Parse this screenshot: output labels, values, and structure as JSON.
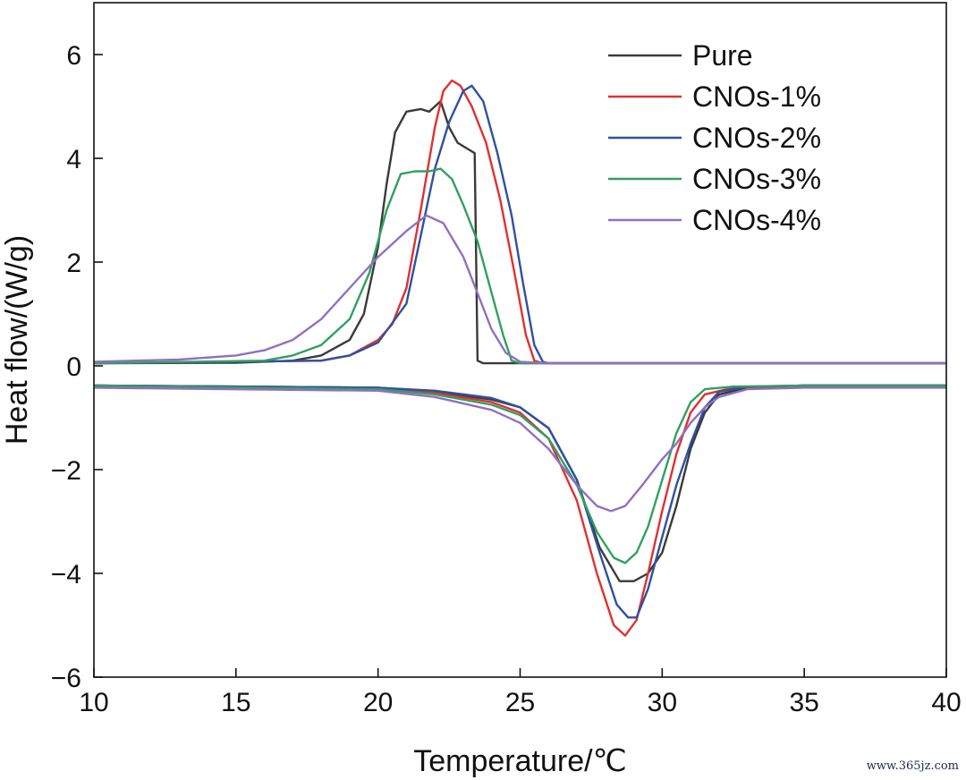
{
  "chart_data": {
    "type": "line",
    "title": "",
    "xlabel": "Temperature/℃",
    "ylabel": "Heat flow/(W/g)",
    "xlim": [
      10,
      40
    ],
    "ylim": [
      -6,
      7
    ],
    "xticks": [
      10,
      15,
      20,
      25,
      30,
      35,
      40
    ],
    "yticks": [
      -6,
      -4,
      -2,
      0,
      2,
      4,
      6
    ],
    "ytick_labels": [
      "−6",
      "−4",
      "−2",
      "0",
      "2",
      "4",
      "6"
    ],
    "grid": false,
    "legend_position": "top-right",
    "series": [
      {
        "name": "Pure",
        "color": "#3a3a3a",
        "heating": [
          [
            10,
            0.05
          ],
          [
            15,
            0.06
          ],
          [
            17,
            0.1
          ],
          [
            18,
            0.2
          ],
          [
            19,
            0.5
          ],
          [
            19.5,
            1.0
          ],
          [
            20,
            2.3
          ],
          [
            20.3,
            3.5
          ],
          [
            20.6,
            4.5
          ],
          [
            21,
            4.9
          ],
          [
            21.5,
            4.95
          ],
          [
            21.8,
            4.9
          ],
          [
            22,
            5.0
          ],
          [
            22.2,
            5.1
          ],
          [
            22.5,
            4.6
          ],
          [
            22.8,
            4.3
          ],
          [
            23.1,
            4.2
          ],
          [
            23.4,
            4.1
          ],
          [
            23.5,
            0.1
          ],
          [
            23.7,
            0.05
          ],
          [
            30,
            0.05
          ],
          [
            40,
            0.05
          ]
        ],
        "cooling": [
          [
            10,
            -0.38
          ],
          [
            20,
            -0.42
          ],
          [
            22,
            -0.5
          ],
          [
            24,
            -0.65
          ],
          [
            25,
            -0.8
          ],
          [
            26,
            -1.2
          ],
          [
            27,
            -2.2
          ],
          [
            27.8,
            -3.5
          ],
          [
            28.5,
            -4.15
          ],
          [
            29,
            -4.15
          ],
          [
            29.5,
            -4.0
          ],
          [
            30,
            -3.6
          ],
          [
            30.5,
            -2.7
          ],
          [
            31,
            -1.6
          ],
          [
            31.5,
            -0.9
          ],
          [
            32,
            -0.55
          ],
          [
            33,
            -0.42
          ],
          [
            35,
            -0.38
          ],
          [
            40,
            -0.38
          ]
        ]
      },
      {
        "name": "CNOs-1%",
        "color": "#e03030",
        "heating": [
          [
            10,
            0.05
          ],
          [
            18,
            0.1
          ],
          [
            19,
            0.2
          ],
          [
            20,
            0.5
          ],
          [
            20.5,
            0.8
          ],
          [
            21,
            1.5
          ],
          [
            21.5,
            3.0
          ],
          [
            22,
            4.6
          ],
          [
            22.3,
            5.3
          ],
          [
            22.6,
            5.5
          ],
          [
            22.9,
            5.4
          ],
          [
            23.3,
            5.0
          ],
          [
            23.8,
            4.3
          ],
          [
            24.3,
            3.2
          ],
          [
            24.8,
            1.8
          ],
          [
            25.2,
            0.6
          ],
          [
            25.5,
            0.1
          ],
          [
            25.8,
            0.05
          ],
          [
            40,
            0.05
          ]
        ],
        "cooling": [
          [
            10,
            -0.38
          ],
          [
            20,
            -0.42
          ],
          [
            22,
            -0.52
          ],
          [
            24,
            -0.7
          ],
          [
            25,
            -0.9
          ],
          [
            26,
            -1.4
          ],
          [
            27,
            -2.6
          ],
          [
            27.7,
            -4.0
          ],
          [
            28.3,
            -5.0
          ],
          [
            28.7,
            -5.2
          ],
          [
            29.1,
            -4.9
          ],
          [
            29.5,
            -4.0
          ],
          [
            30,
            -2.8
          ],
          [
            30.5,
            -1.7
          ],
          [
            31,
            -0.9
          ],
          [
            31.5,
            -0.55
          ],
          [
            32.5,
            -0.42
          ],
          [
            35,
            -0.38
          ],
          [
            40,
            -0.38
          ]
        ]
      },
      {
        "name": "CNOs-2%",
        "color": "#3050a0",
        "heating": [
          [
            10,
            0.05
          ],
          [
            18,
            0.1
          ],
          [
            19,
            0.2
          ],
          [
            20,
            0.45
          ],
          [
            21,
            1.2
          ],
          [
            21.5,
            2.5
          ],
          [
            22,
            3.8
          ],
          [
            22.5,
            4.7
          ],
          [
            23,
            5.3
          ],
          [
            23.3,
            5.4
          ],
          [
            23.7,
            5.1
          ],
          [
            24.2,
            4.1
          ],
          [
            24.7,
            2.9
          ],
          [
            25.1,
            1.6
          ],
          [
            25.5,
            0.4
          ],
          [
            25.8,
            0.08
          ],
          [
            26,
            0.05
          ],
          [
            40,
            0.05
          ]
        ],
        "cooling": [
          [
            10,
            -0.38
          ],
          [
            20,
            -0.42
          ],
          [
            22,
            -0.48
          ],
          [
            24,
            -0.62
          ],
          [
            25,
            -0.8
          ],
          [
            26,
            -1.2
          ],
          [
            27,
            -2.2
          ],
          [
            27.8,
            -3.6
          ],
          [
            28.4,
            -4.6
          ],
          [
            28.8,
            -4.85
          ],
          [
            29.1,
            -4.85
          ],
          [
            29.5,
            -4.3
          ],
          [
            30,
            -3.3
          ],
          [
            30.5,
            -2.3
          ],
          [
            31,
            -1.5
          ],
          [
            31.5,
            -0.8
          ],
          [
            32,
            -0.5
          ],
          [
            33,
            -0.4
          ],
          [
            35,
            -0.38
          ],
          [
            40,
            -0.38
          ]
        ]
      },
      {
        "name": "CNOs-3%",
        "color": "#30a060",
        "heating": [
          [
            10,
            0.05
          ],
          [
            16,
            0.1
          ],
          [
            17,
            0.2
          ],
          [
            18,
            0.4
          ],
          [
            19,
            0.9
          ],
          [
            19.7,
            1.8
          ],
          [
            20.3,
            3.0
          ],
          [
            20.8,
            3.7
          ],
          [
            21.3,
            3.75
          ],
          [
            21.8,
            3.75
          ],
          [
            22.2,
            3.8
          ],
          [
            22.6,
            3.6
          ],
          [
            23,
            3.1
          ],
          [
            23.5,
            2.4
          ],
          [
            24,
            1.4
          ],
          [
            24.4,
            0.6
          ],
          [
            24.7,
            0.1
          ],
          [
            25,
            0.05
          ],
          [
            40,
            0.05
          ]
        ],
        "cooling": [
          [
            10,
            -0.38
          ],
          [
            20,
            -0.45
          ],
          [
            22,
            -0.55
          ],
          [
            24,
            -0.75
          ],
          [
            25,
            -0.95
          ],
          [
            26,
            -1.4
          ],
          [
            27,
            -2.3
          ],
          [
            27.7,
            -3.2
          ],
          [
            28.3,
            -3.7
          ],
          [
            28.7,
            -3.8
          ],
          [
            29.1,
            -3.6
          ],
          [
            29.5,
            -3.1
          ],
          [
            30,
            -2.2
          ],
          [
            30.5,
            -1.3
          ],
          [
            31,
            -0.7
          ],
          [
            31.5,
            -0.45
          ],
          [
            32.5,
            -0.4
          ],
          [
            35,
            -0.38
          ],
          [
            40,
            -0.38
          ]
        ]
      },
      {
        "name": "CNOs-4%",
        "color": "#9070c0",
        "heating": [
          [
            10,
            0.08
          ],
          [
            13,
            0.12
          ],
          [
            15,
            0.2
          ],
          [
            16,
            0.3
          ],
          [
            17,
            0.5
          ],
          [
            18,
            0.9
          ],
          [
            19,
            1.5
          ],
          [
            20,
            2.1
          ],
          [
            21,
            2.6
          ],
          [
            21.7,
            2.9
          ],
          [
            22.3,
            2.75
          ],
          [
            23,
            2.1
          ],
          [
            23.5,
            1.4
          ],
          [
            24,
            0.7
          ],
          [
            24.5,
            0.25
          ],
          [
            25,
            0.08
          ],
          [
            26,
            0.05
          ],
          [
            40,
            0.05
          ]
        ],
        "cooling": [
          [
            10,
            -0.42
          ],
          [
            20,
            -0.48
          ],
          [
            22,
            -0.6
          ],
          [
            24,
            -0.85
          ],
          [
            25,
            -1.1
          ],
          [
            26,
            -1.6
          ],
          [
            27,
            -2.3
          ],
          [
            27.7,
            -2.7
          ],
          [
            28.2,
            -2.8
          ],
          [
            28.7,
            -2.7
          ],
          [
            29.3,
            -2.3
          ],
          [
            30,
            -1.8
          ],
          [
            30.5,
            -1.5
          ],
          [
            31,
            -1.1
          ],
          [
            31.5,
            -0.8
          ],
          [
            32,
            -0.6
          ],
          [
            33,
            -0.45
          ],
          [
            35,
            -0.42
          ],
          [
            40,
            -0.42
          ]
        ]
      }
    ]
  },
  "watermark": "www.365jz.com"
}
